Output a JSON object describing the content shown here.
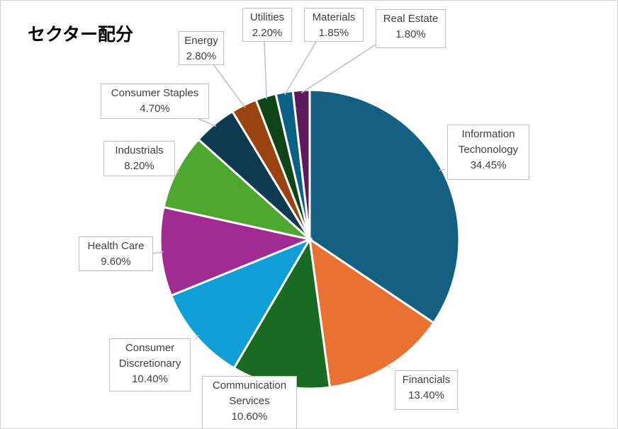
{
  "chart_data": {
    "type": "pie",
    "title": "セクター配分",
    "start": "top",
    "direction": "clockwise",
    "slices": [
      {
        "name": "Information Techonology",
        "lines": [
          "Information",
          "Techonology"
        ],
        "value": 34.45,
        "label": "34.45%",
        "color": "#156082"
      },
      {
        "name": "Financials",
        "lines": [
          "Financials"
        ],
        "value": 13.4,
        "label": "13.40%",
        "color": "#e97132"
      },
      {
        "name": "Communication Services",
        "lines": [
          "Communication",
          "Services"
        ],
        "value": 10.6,
        "label": "10.60%",
        "color": "#196b24"
      },
      {
        "name": "Consumer Discretionary",
        "lines": [
          "Consumer",
          "Discretionary"
        ],
        "value": 10.4,
        "label": "10.40%",
        "color": "#0f9ed5"
      },
      {
        "name": "Health Care",
        "lines": [
          "Health Care"
        ],
        "value": 9.6,
        "label": "9.60%",
        "color": "#a02b93"
      },
      {
        "name": "Industrials",
        "lines": [
          "Industrials"
        ],
        "value": 8.2,
        "label": "8.20%",
        "color": "#4ea72e"
      },
      {
        "name": "Consumer Staples",
        "lines": [
          "Consumer Staples"
        ],
        "value": 4.7,
        "label": "4.70%",
        "color": "#0e3a4f"
      },
      {
        "name": "Energy",
        "lines": [
          "Energy"
        ],
        "value": 2.8,
        "label": "2.80%",
        "color": "#9b4211"
      },
      {
        "name": "Utilities",
        "lines": [
          "Utilities"
        ],
        "value": 2.2,
        "label": "2.20%",
        "color": "#0f4417"
      },
      {
        "name": "Materials",
        "lines": [
          "Materials"
        ],
        "value": 1.85,
        "label": "1.85%",
        "color": "#0b6185"
      },
      {
        "name": "Real Estate",
        "lines": [
          "Real Estate"
        ],
        "value": 1.8,
        "label": "1.80%",
        "color": "#5e1a5a"
      }
    ]
  }
}
